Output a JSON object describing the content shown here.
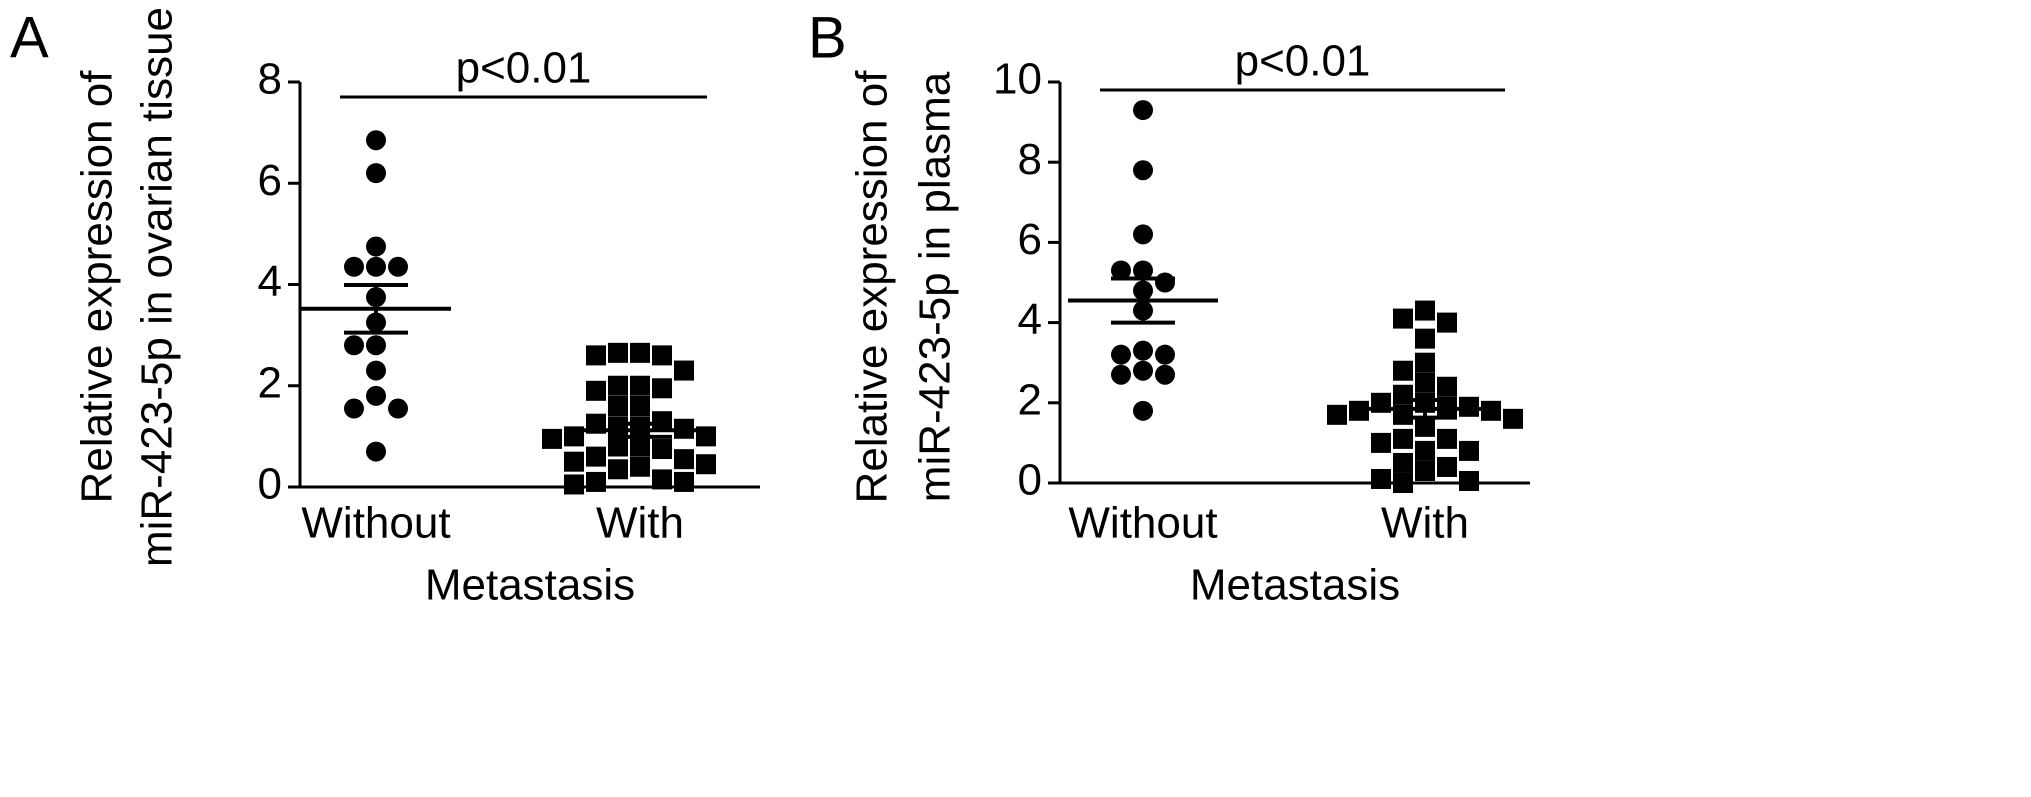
{
  "chart_data": [
    {
      "type": "dotplot",
      "panel_label": "A",
      "ylabel": [
        "Relative expression of",
        "miR-423-5p in ovarian tissue"
      ],
      "xlabel": "Metastasis",
      "annotation": "p<0.01",
      "categories": [
        "Without",
        "With"
      ],
      "groups": [
        {
          "marker": "circle",
          "color": "#000000",
          "mean": 3.52,
          "sem": 0.47,
          "values": [
            6.85,
            6.2,
            4.75,
            4.35,
            4.35,
            4.35,
            3.75,
            3.25,
            2.8,
            2.8,
            2.3,
            1.8,
            1.55,
            1.55,
            0.7
          ]
        },
        {
          "marker": "square",
          "color": "#000000",
          "mean": 1.12,
          "sem": 0.13,
          "values": [
            2.65,
            2.65,
            2.6,
            2.6,
            2.3,
            2.0,
            2.0,
            1.95,
            1.9,
            1.6,
            1.6,
            1.3,
            1.25,
            1.2,
            1.2,
            1.15,
            1.0,
            1.0,
            0.95,
            0.8,
            0.8,
            0.75,
            0.6,
            0.55,
            0.5,
            0.45,
            0.4,
            0.35,
            0.15,
            0.1,
            0.1,
            0.05
          ]
        }
      ],
      "ylim": [
        0,
        8
      ],
      "yticks": [
        0,
        2,
        4,
        6,
        8
      ]
    },
    {
      "type": "dotplot",
      "panel_label": "B",
      "ylabel": [
        "Relative expression of",
        "miR-423-5p in plasma"
      ],
      "xlabel": "Metastasis",
      "annotation": "p<0.01",
      "categories": [
        "Without",
        "With"
      ],
      "groups": [
        {
          "marker": "circle",
          "color": "#000000",
          "mean": 4.55,
          "sem": 0.55,
          "values": [
            9.3,
            7.8,
            6.2,
            5.3,
            5.3,
            5.0,
            4.8,
            4.3,
            3.3,
            3.2,
            3.2,
            2.8,
            2.7,
            2.7,
            1.8
          ]
        },
        {
          "marker": "square",
          "color": "#000000",
          "mean": 1.85,
          "sem": 0.22,
          "values": [
            4.3,
            4.1,
            4.0,
            3.6,
            3.0,
            2.8,
            2.5,
            2.4,
            2.2,
            2.0,
            2.0,
            1.9,
            1.9,
            1.8,
            1.8,
            1.7,
            1.7,
            1.6,
            1.4,
            1.1,
            1.1,
            1.0,
            0.8,
            0.8,
            0.5,
            0.4,
            0.3,
            0.1,
            0.05,
            0.0
          ]
        }
      ],
      "ylim": [
        0,
        10
      ],
      "yticks": [
        0,
        2,
        4,
        6,
        8,
        10
      ]
    }
  ]
}
